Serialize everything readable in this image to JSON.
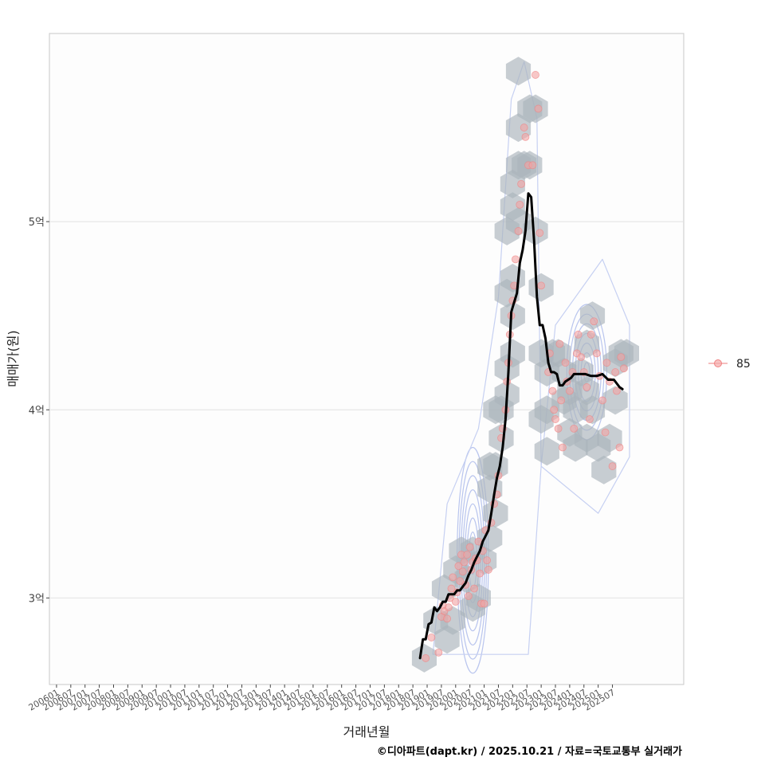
{
  "chart_data": {
    "type": "scatter",
    "xlabel": "거래년월",
    "ylabel": "매매가(원)",
    "caption": "©디아파트(dapt.kr) / 2025.10.21 / 자료=국토교통부 실거래가",
    "x_range": [
      -0.5,
      44
    ],
    "y_range": [
      2.54,
      6.0
    ],
    "y_ticks": [
      {
        "value": 3,
        "label": "3억"
      },
      {
        "value": 4,
        "label": "4억"
      },
      {
        "value": 5,
        "label": "5억"
      }
    ],
    "x_tick_labels": [
      "200601",
      "200607",
      "200701",
      "200707",
      "200801",
      "200807",
      "200901",
      "200907",
      "201001",
      "201007",
      "201101",
      "201107",
      "201201",
      "201207",
      "201301",
      "201307",
      "201401",
      "201407",
      "201501",
      "201507",
      "201601",
      "201607",
      "201701",
      "201707",
      "201801",
      "201807",
      "201901",
      "201907",
      "202001",
      "202007",
      "202101",
      "202107",
      "202201",
      "202207",
      "202301",
      "202307",
      "202401",
      "202407",
      "202501",
      "202507"
    ],
    "legend": {
      "label": "85",
      "position": "right"
    },
    "series": [
      {
        "name": "85 moving average",
        "color": "#000000",
        "points": [
          [
            25.5,
            2.68
          ],
          [
            25.7,
            2.78
          ],
          [
            25.9,
            2.78
          ],
          [
            26.1,
            2.86
          ],
          [
            26.3,
            2.87
          ],
          [
            26.5,
            2.95
          ],
          [
            26.7,
            2.93
          ],
          [
            26.9,
            2.95
          ],
          [
            27.1,
            2.98
          ],
          [
            27.3,
            2.98
          ],
          [
            27.5,
            3.02
          ],
          [
            27.7,
            3.02
          ],
          [
            27.9,
            3.02
          ],
          [
            28.1,
            3.04
          ],
          [
            28.3,
            3.04
          ],
          [
            28.5,
            3.06
          ],
          [
            28.7,
            3.08
          ],
          [
            28.9,
            3.12
          ],
          [
            29.1,
            3.15
          ],
          [
            29.3,
            3.19
          ],
          [
            29.5,
            3.22
          ],
          [
            29.7,
            3.25
          ],
          [
            29.9,
            3.3
          ],
          [
            30.1,
            3.33
          ],
          [
            30.3,
            3.36
          ],
          [
            30.5,
            3.45
          ],
          [
            30.7,
            3.55
          ],
          [
            30.9,
            3.64
          ],
          [
            31.1,
            3.7
          ],
          [
            31.3,
            3.8
          ],
          [
            31.5,
            3.95
          ],
          [
            31.7,
            4.2
          ],
          [
            31.9,
            4.52
          ],
          [
            32.1,
            4.57
          ],
          [
            32.3,
            4.62
          ],
          [
            32.5,
            4.78
          ],
          [
            32.7,
            4.85
          ],
          [
            32.9,
            4.95
          ],
          [
            33.1,
            5.15
          ],
          [
            33.3,
            5.13
          ],
          [
            33.5,
            4.9
          ],
          [
            33.7,
            4.6
          ],
          [
            33.9,
            4.45
          ],
          [
            34.1,
            4.45
          ],
          [
            34.3,
            4.38
          ],
          [
            34.5,
            4.25
          ],
          [
            34.7,
            4.2
          ],
          [
            34.9,
            4.2
          ],
          [
            35.1,
            4.19
          ],
          [
            35.3,
            4.13
          ],
          [
            35.5,
            4.13
          ],
          [
            35.7,
            4.15
          ],
          [
            35.9,
            4.16
          ],
          [
            36.1,
            4.17
          ],
          [
            36.3,
            4.19
          ],
          [
            36.5,
            4.19
          ],
          [
            36.7,
            4.19
          ],
          [
            36.9,
            4.19
          ],
          [
            37.1,
            4.19
          ],
          [
            37.5,
            4.18
          ],
          [
            37.9,
            4.18
          ],
          [
            38.3,
            4.19
          ],
          [
            38.7,
            4.16
          ],
          [
            39.1,
            4.16
          ],
          [
            39.5,
            4.12
          ],
          [
            39.7,
            4.11
          ]
        ]
      }
    ],
    "scatter_points": [
      [
        25.9,
        2.68
      ],
      [
        26.3,
        2.79
      ],
      [
        26.8,
        2.71
      ],
      [
        27.0,
        2.9
      ],
      [
        27.1,
        2.96
      ],
      [
        27.2,
        2.93
      ],
      [
        27.4,
        2.89
      ],
      [
        27.5,
        2.95
      ],
      [
        27.6,
        3.0
      ],
      [
        27.7,
        3.05
      ],
      [
        27.8,
        3.11
      ],
      [
        28.0,
        2.98
      ],
      [
        28.1,
        3.03
      ],
      [
        28.2,
        3.17
      ],
      [
        28.3,
        3.09
      ],
      [
        28.4,
        3.23
      ],
      [
        28.5,
        3.14
      ],
      [
        28.6,
        3.19
      ],
      [
        28.7,
        3.07
      ],
      [
        28.8,
        3.23
      ],
      [
        28.9,
        3.01
      ],
      [
        29.0,
        3.27
      ],
      [
        29.1,
        3.15
      ],
      [
        29.2,
        3.19
      ],
      [
        29.3,
        3.05
      ],
      [
        29.4,
        3.21
      ],
      [
        29.5,
        3.2
      ],
      [
        29.6,
        3.3
      ],
      [
        29.7,
        3.13
      ],
      [
        29.8,
        2.97
      ],
      [
        29.9,
        3.25
      ],
      [
        30.0,
        2.97
      ],
      [
        30.1,
        3.36
      ],
      [
        30.2,
        3.2
      ],
      [
        30.3,
        3.15
      ],
      [
        30.5,
        3.4
      ],
      [
        30.7,
        3.5
      ],
      [
        30.9,
        3.55
      ],
      [
        31.0,
        3.65
      ],
      [
        31.2,
        3.85
      ],
      [
        31.3,
        3.9
      ],
      [
        31.5,
        4.0
      ],
      [
        31.6,
        4.15
      ],
      [
        31.7,
        4.25
      ],
      [
        31.8,
        4.4
      ],
      [
        31.9,
        4.5
      ],
      [
        32.0,
        4.58
      ],
      [
        32.1,
        4.66
      ],
      [
        32.2,
        4.8
      ],
      [
        32.4,
        4.95
      ],
      [
        32.5,
        5.09
      ],
      [
        32.6,
        5.2
      ],
      [
        32.8,
        5.5
      ],
      [
        32.9,
        5.45
      ],
      [
        33.1,
        5.3
      ],
      [
        33.4,
        5.3
      ],
      [
        33.6,
        5.78
      ],
      [
        33.8,
        5.6
      ],
      [
        33.9,
        4.94
      ],
      [
        34.0,
        4.66
      ],
      [
        34.5,
        4.2
      ],
      [
        34.6,
        4.3
      ],
      [
        34.8,
        4.1
      ],
      [
        34.9,
        4.0
      ],
      [
        35.0,
        3.95
      ],
      [
        35.2,
        3.9
      ],
      [
        35.3,
        4.35
      ],
      [
        35.4,
        4.05
      ],
      [
        35.5,
        3.8
      ],
      [
        35.7,
        4.25
      ],
      [
        35.8,
        4.15
      ],
      [
        36.0,
        4.1
      ],
      [
        36.2,
        4.2
      ],
      [
        36.3,
        3.9
      ],
      [
        36.5,
        4.3
      ],
      [
        36.6,
        4.4
      ],
      [
        36.8,
        4.28
      ],
      [
        37.0,
        4.2
      ],
      [
        37.2,
        4.12
      ],
      [
        37.4,
        3.95
      ],
      [
        37.5,
        4.4
      ],
      [
        37.7,
        4.47
      ],
      [
        37.9,
        4.3
      ],
      [
        38.1,
        4.18
      ],
      [
        38.3,
        4.05
      ],
      [
        38.5,
        3.88
      ],
      [
        38.6,
        4.25
      ],
      [
        38.8,
        4.15
      ],
      [
        39.0,
        3.7
      ],
      [
        39.2,
        4.2
      ],
      [
        39.3,
        4.1
      ],
      [
        39.5,
        3.8
      ],
      [
        39.6,
        4.28
      ],
      [
        39.8,
        4.22
      ]
    ],
    "hexbins": [
      [
        25.8,
        2.68
      ],
      [
        26.6,
        2.88
      ],
      [
        27.2,
        3.05
      ],
      [
        27.8,
        2.88
      ],
      [
        27.4,
        2.78
      ],
      [
        28.4,
        3.25
      ],
      [
        28.0,
        3.15
      ],
      [
        28.8,
        3.1
      ],
      [
        29.2,
        3.25
      ],
      [
        29.6,
        3.0
      ],
      [
        29.2,
        2.95
      ],
      [
        30.0,
        3.2
      ],
      [
        30.4,
        3.32
      ],
      [
        30.8,
        3.45
      ],
      [
        30.4,
        3.58
      ],
      [
        30.8,
        3.7
      ],
      [
        31.2,
        3.85
      ],
      [
        30.4,
        3.7
      ],
      [
        31.2,
        4.0
      ],
      [
        31.6,
        4.08
      ],
      [
        30.8,
        4.0
      ],
      [
        31.6,
        4.22
      ],
      [
        32.0,
        4.3
      ],
      [
        32.0,
        4.5
      ],
      [
        31.6,
        4.62
      ],
      [
        32.0,
        4.7
      ],
      [
        31.6,
        4.95
      ],
      [
        32.0,
        5.08
      ],
      [
        32.4,
        5.0
      ],
      [
        32.0,
        5.2
      ],
      [
        32.4,
        5.3
      ],
      [
        32.8,
        5.3
      ],
      [
        33.2,
        5.3
      ],
      [
        32.4,
        5.5
      ],
      [
        33.2,
        5.6
      ],
      [
        32.4,
        5.8
      ],
      [
        33.6,
        5.6
      ],
      [
        33.6,
        4.95
      ],
      [
        34.0,
        4.65
      ],
      [
        34.0,
        4.3
      ],
      [
        34.4,
        4.2
      ],
      [
        34.8,
        4.3
      ],
      [
        34.4,
        4.0
      ],
      [
        34.0,
        3.95
      ],
      [
        35.6,
        4.2
      ],
      [
        36.0,
        4.1
      ],
      [
        36.4,
        4.0
      ],
      [
        36.8,
        4.2
      ],
      [
        37.2,
        4.35
      ],
      [
        37.6,
        4.5
      ],
      [
        37.2,
        4.1
      ],
      [
        37.6,
        4.0
      ],
      [
        36.4,
        3.8
      ],
      [
        37.2,
        3.85
      ],
      [
        38.0,
        3.8
      ],
      [
        38.4,
        3.68
      ],
      [
        38.8,
        3.85
      ],
      [
        39.2,
        4.05
      ],
      [
        39.2,
        4.25
      ],
      [
        39.6,
        4.3
      ],
      [
        40.0,
        4.3
      ],
      [
        35.2,
        4.3
      ],
      [
        35.6,
        4.05
      ],
      [
        34.4,
        3.78
      ],
      [
        36.0,
        3.88
      ]
    ],
    "density_contours": [
      {
        "cx": 29.2,
        "cy": 3.2,
        "rx": 1.1,
        "ry": 0.6,
        "levels": 8
      },
      {
        "cx": 37.2,
        "cy": 4.2,
        "rx": 1.4,
        "ry": 0.36,
        "levels": 7
      }
    ]
  }
}
